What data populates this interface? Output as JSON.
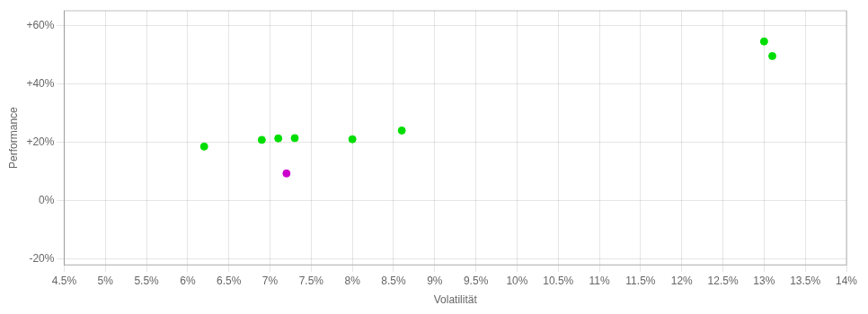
{
  "chart_data": {
    "type": "scatter",
    "xlabel": "Volatilität",
    "ylabel": "Performance",
    "xlim": [
      0.045,
      0.14
    ],
    "ylim": [
      -0.22,
      0.65
    ],
    "xticks": [
      {
        "value": 0.045,
        "label": "4.5%"
      },
      {
        "value": 0.05,
        "label": "5%"
      },
      {
        "value": 0.055,
        "label": "5.5%"
      },
      {
        "value": 0.06,
        "label": "6%"
      },
      {
        "value": 0.065,
        "label": "6.5%"
      },
      {
        "value": 0.07,
        "label": "7%"
      },
      {
        "value": 0.075,
        "label": "7.5%"
      },
      {
        "value": 0.08,
        "label": "8%"
      },
      {
        "value": 0.085,
        "label": "8.5%"
      },
      {
        "value": 0.09,
        "label": "9%"
      },
      {
        "value": 0.095,
        "label": "9.5%"
      },
      {
        "value": 0.1,
        "label": "10%"
      },
      {
        "value": 0.105,
        "label": "10.5%"
      },
      {
        "value": 0.11,
        "label": "11%"
      },
      {
        "value": 0.115,
        "label": "11.5%"
      },
      {
        "value": 0.12,
        "label": "12%"
      },
      {
        "value": 0.125,
        "label": "12.5%"
      },
      {
        "value": 0.13,
        "label": "13%"
      },
      {
        "value": 0.135,
        "label": "13.5%"
      },
      {
        "value": 0.14,
        "label": "14%"
      }
    ],
    "yticks": [
      {
        "value": -0.2,
        "label": "-20%"
      },
      {
        "value": 0.0,
        "label": "0%"
      },
      {
        "value": 0.2,
        "label": "+20%"
      },
      {
        "value": 0.4,
        "label": "+40%"
      },
      {
        "value": 0.6,
        "label": "+60%"
      }
    ],
    "grid": true,
    "series": [
      {
        "color": "#00dd00",
        "x": [
          0.062,
          0.069,
          0.071,
          0.073,
          0.08,
          0.086,
          0.13,
          0.131
        ],
        "values": [
          0.185,
          0.208,
          0.213,
          0.214,
          0.21,
          0.24,
          0.545,
          0.495
        ]
      },
      {
        "color": "#cc00cc",
        "x": [
          0.072
        ],
        "values": [
          0.093
        ]
      }
    ]
  }
}
